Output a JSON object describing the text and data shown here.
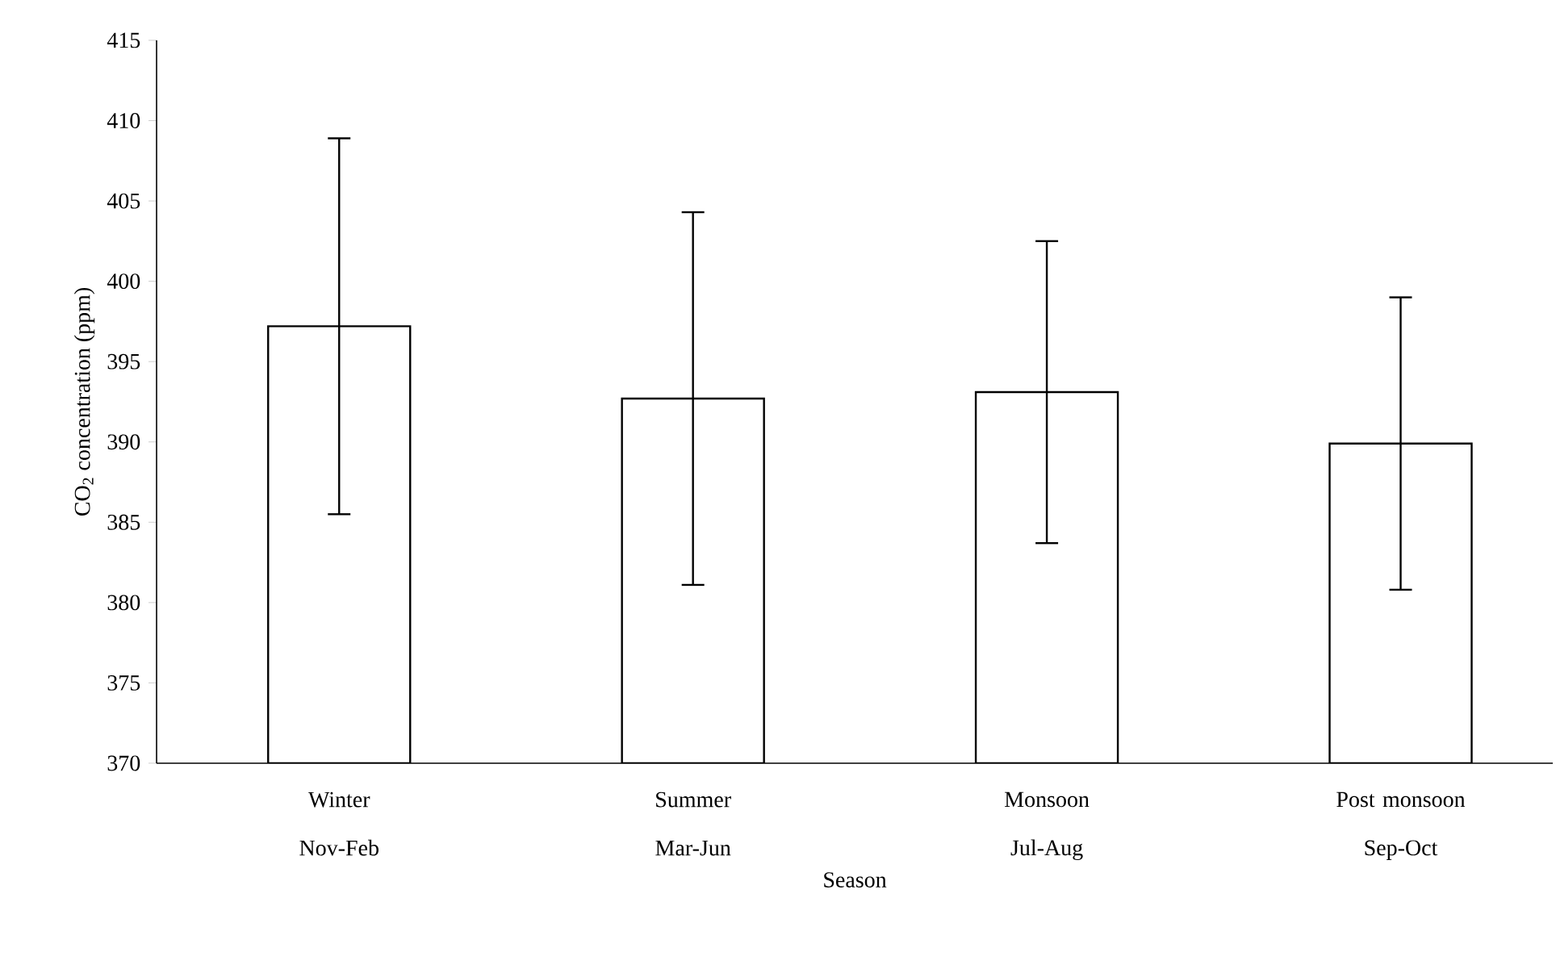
{
  "chart_data": {
    "type": "bar",
    "ylabel": "CO$_{2}$ concentration (ppm)",
    "xlabel": "Season",
    "categories": [
      "Winter Nov-Feb",
      "Summer Mar-Jun",
      "Monsoon Jul-Aug",
      "Post monsoon Sep-Oct"
    ],
    "values": [
      397.2,
      392.7,
      393.1,
      389.9
    ],
    "errors": [
      11.7,
      11.6,
      9.4,
      9.1
    ],
    "color": "#ffffff",
    "ylim": [
      370,
      415
    ],
    "yticks": [
      370,
      375,
      380,
      385,
      390,
      395,
      400,
      405,
      410,
      415
    ]
  }
}
